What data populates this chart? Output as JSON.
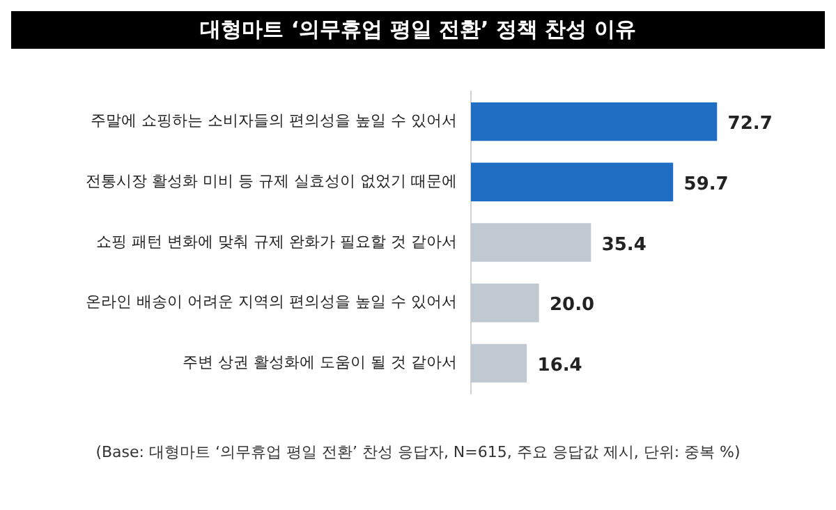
{
  "chart_data": {
    "type": "bar",
    "orientation": "horizontal",
    "title": "대형마트 ‘의무휴업 평일 전환’ 정책 찬성 이유",
    "categories": [
      "주말에 쇼핑하는 소비자들의 편의성을 높일 수 있어서",
      "전통시장 활성화 미비 등 규제 실효성이 없었기 때문에",
      "쇼핑 패턴 변화에 맞춰 규제 완화가 필요할 것 같아서",
      "온라인 배송이 어려운 지역의 편의성을 높일 수 있어서",
      "주변 상권 활성화에 도움이 될 것 같아서"
    ],
    "values": [
      72.7,
      59.7,
      35.4,
      20.0,
      16.4
    ],
    "colors": [
      "#1f6ec4",
      "#1f6ec4",
      "#c0c8d1",
      "#c0c8d1",
      "#c0c8d1"
    ],
    "value_labels": [
      "72.7",
      "59.7",
      "35.4",
      "20.0",
      "16.4"
    ],
    "annotations": [
      "(Base: 대형마트 ‘의무휴업 평일 전환’ 찬성 응답자, N=615, 주요 응답값 제시, 단위: 중복 %)"
    ],
    "grid": false,
    "legend": false
  }
}
